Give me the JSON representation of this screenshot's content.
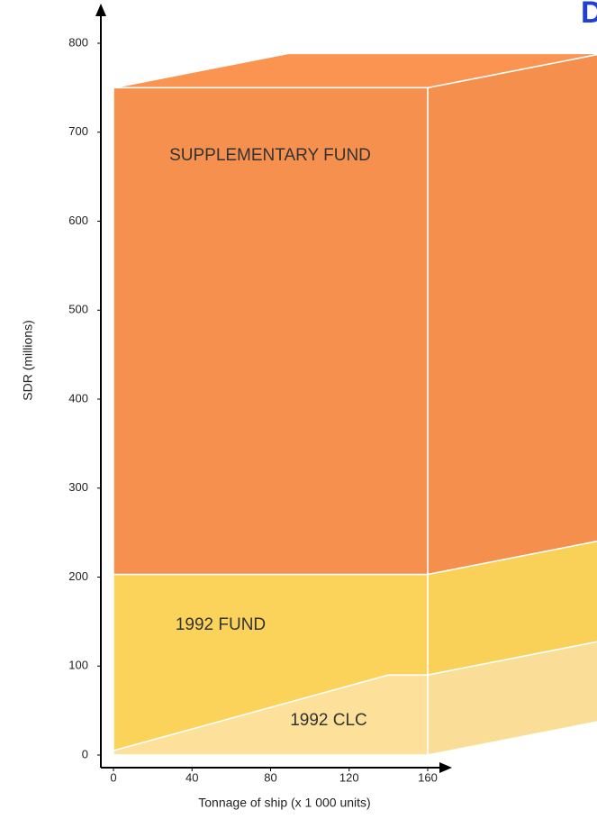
{
  "heading": "D",
  "chart_data": {
    "type": "stacked-area-3d",
    "xlabel": "Tonnage of ship (x 1 000 units)",
    "ylabel": "SDR (millions)",
    "x": [
      0,
      140,
      160
    ],
    "series": [
      {
        "name": "1992 CLC",
        "color": "#fde09a",
        "values": [
          5,
          90,
          90
        ]
      },
      {
        "name": "1992 FUND",
        "color": "#fcd35a",
        "values": [
          198,
          113,
          113
        ]
      },
      {
        "name": "SUPPLEMENTARY FUND",
        "color": "#f6904f",
        "values": [
          547,
          547,
          547
        ]
      }
    ],
    "xlim": [
      0,
      160
    ],
    "xticks": [
      0,
      40,
      80,
      120,
      160
    ],
    "ylim": [
      0,
      800
    ],
    "yticks": [
      0,
      100,
      200,
      300,
      400,
      500,
      600,
      700,
      800
    ]
  }
}
